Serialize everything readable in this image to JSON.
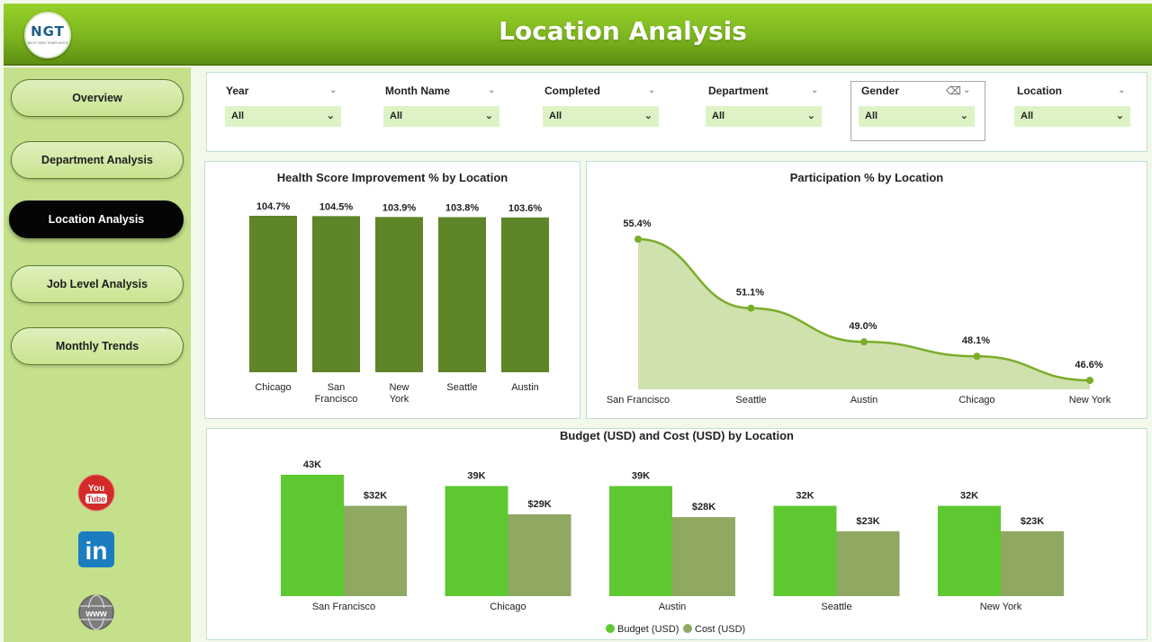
{
  "header": {
    "title": "Location Analysis",
    "logo_text": "NGT",
    "logo_subtext": "NEXT GEN TEMPLATES"
  },
  "sidebar": {
    "items": [
      {
        "label": "Overview",
        "active": false
      },
      {
        "label": "Department Analysis",
        "active": false
      },
      {
        "label": "Location Analysis",
        "active": true
      },
      {
        "label": "Job Level Analysis",
        "active": false
      },
      {
        "label": "Monthly Trends",
        "active": false
      }
    ],
    "social": [
      {
        "name": "youtube-icon",
        "label_top": "You",
        "label_bottom": "Tube"
      },
      {
        "name": "linkedin-icon",
        "label": "in"
      },
      {
        "name": "website-icon",
        "label": "www"
      }
    ]
  },
  "filters": [
    {
      "label": "Year",
      "value": "All"
    },
    {
      "label": "Month Name",
      "value": "All"
    },
    {
      "label": "Completed",
      "value": "All"
    },
    {
      "label": "Department",
      "value": "All"
    },
    {
      "label": "Gender",
      "value": "All"
    },
    {
      "label": "Location",
      "value": "All"
    }
  ],
  "chart_data": [
    {
      "type": "bar",
      "title": "Health Score Improvement % by Location",
      "categories": [
        "Chicago",
        "San Francisco",
        "New York",
        "Seattle",
        "Austin"
      ],
      "values": [
        104.7,
        104.5,
        103.9,
        103.8,
        103.6
      ],
      "labels": [
        "104.7%",
        "104.5%",
        "103.9%",
        "103.8%",
        "103.6%"
      ],
      "color": "#5e8527"
    },
    {
      "type": "area",
      "title": "Participation % by Location",
      "categories": [
        "San Francisco",
        "Seattle",
        "Austin",
        "Chicago",
        "New York"
      ],
      "values": [
        55.4,
        51.1,
        49.0,
        48.1,
        46.6
      ],
      "labels": [
        "55.4%",
        "51.1%",
        "49.0%",
        "48.1%",
        "46.6%"
      ],
      "line_color": "#7aad2a",
      "fill_color": "#cfe1ad"
    },
    {
      "type": "bar",
      "title": "Budget (USD) and Cost (USD) by Location",
      "categories": [
        "San Francisco",
        "Chicago",
        "Austin",
        "Seattle",
        "New York"
      ],
      "series": [
        {
          "name": "Budget (USD)",
          "values": [
            43,
            39,
            39,
            32,
            32
          ],
          "labels": [
            "43K",
            "39K",
            "39K",
            "32K",
            "32K"
          ],
          "color": "#5ec831"
        },
        {
          "name": "Cost (USD)",
          "values": [
            32,
            29,
            28,
            23,
            23
          ],
          "labels": [
            "$32K",
            "$29K",
            "$28K",
            "$23K",
            "$23K"
          ],
          "color": "#8fa862"
        }
      ],
      "legend_position": "bottom-center"
    }
  ]
}
